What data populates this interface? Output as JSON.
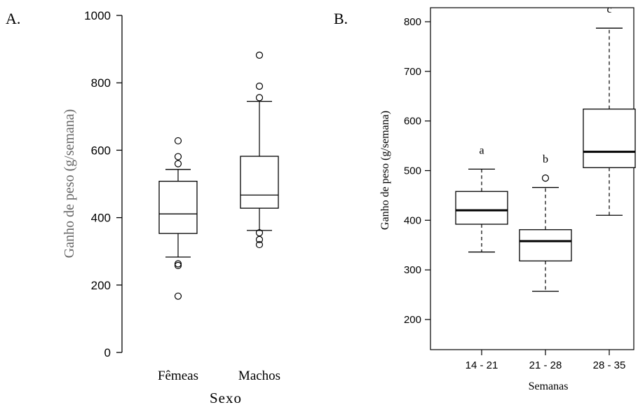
{
  "chart_data": [
    {
      "panel_label": "A.",
      "type": "box",
      "title": "",
      "xlabel": "Sexo",
      "ylabel": "Ganho de peso (g/semana)",
      "ylim": [
        0,
        1000
      ],
      "yticks": [
        "0",
        "200",
        "400",
        "600",
        "800",
        "1000"
      ],
      "categories": [
        "Fêmeas",
        "Machos"
      ],
      "boxes": [
        {
          "q1": 353,
          "median": 411,
          "q3": 508,
          "whisker_low": 283,
          "whisker_high": 543,
          "outliers": [
            167,
            258,
            263,
            560,
            581,
            628
          ]
        },
        {
          "q1": 428,
          "median": 467,
          "q3": 582,
          "whisker_low": 362,
          "whisker_high": 745,
          "outliers": [
            320,
            335,
            355,
            756,
            790,
            882
          ]
        }
      ]
    },
    {
      "panel_label": "B.",
      "type": "box",
      "title": "",
      "xlabel": "Semanas",
      "ylabel": "Ganho de peso (g/semana)",
      "ylim": [
        180,
        800
      ],
      "yticks": [
        "200",
        "300",
        "400",
        "500",
        "600",
        "700",
        "800"
      ],
      "categories": [
        "14 - 21",
        "21 - 28",
        "28 - 35"
      ],
      "annotations": [
        "a",
        "b",
        "c"
      ],
      "boxes": [
        {
          "q1": 392,
          "median": 420,
          "q3": 458,
          "whisker_low": 336,
          "whisker_high": 503,
          "outliers": []
        },
        {
          "q1": 318,
          "median": 358,
          "q3": 381,
          "whisker_low": 257,
          "whisker_high": 466,
          "outliers": [
            485
          ]
        },
        {
          "q1": 506,
          "median": 538,
          "q3": 624,
          "whisker_low": 410,
          "whisker_high": 787,
          "outliers": []
        }
      ]
    }
  ]
}
